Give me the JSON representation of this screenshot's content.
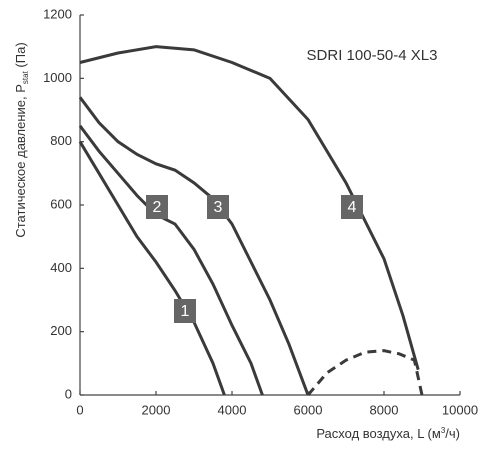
{
  "chart_data": {
    "type": "line",
    "annotation": "SDRI 100-50-4 XL3",
    "y_label": {
      "main": "Статическое давление, P",
      "sub": "stat",
      "tail": " (Па)"
    },
    "x_label": {
      "main": "Расход воздуха, L (м",
      "sup": "3",
      "tail": "/ч)"
    },
    "xlim": [
      0,
      10000
    ],
    "xticks": [
      0,
      2000,
      4000,
      6000,
      8000,
      10000
    ],
    "ylim": [
      0,
      1200
    ],
    "yticks": [
      0,
      200,
      400,
      600,
      800,
      1000,
      1200
    ],
    "grid": false,
    "series": [
      {
        "name": "1",
        "color": "#3a3a3a",
        "x": [
          0,
          500,
          1000,
          1500,
          2000,
          2500,
          3000,
          3500,
          3800
        ],
        "values": [
          800,
          700,
          600,
          500,
          420,
          330,
          230,
          100,
          0
        ]
      },
      {
        "name": "2",
        "color": "#3a3a3a",
        "x": [
          0,
          500,
          1000,
          1500,
          2000,
          2500,
          3000,
          3500,
          4000,
          4500,
          4800
        ],
        "values": [
          850,
          770,
          700,
          630,
          570,
          540,
          460,
          350,
          220,
          100,
          0
        ]
      },
      {
        "name": "3",
        "color": "#3a3a3a",
        "x": [
          0,
          500,
          1000,
          1500,
          2000,
          2500,
          3000,
          3500,
          4000,
          4500,
          5000,
          5500,
          6000
        ],
        "values": [
          940,
          860,
          800,
          760,
          730,
          710,
          670,
          620,
          540,
          420,
          300,
          160,
          0
        ]
      },
      {
        "name": "4",
        "color": "#3a3a3a",
        "x": [
          0,
          1000,
          2000,
          3000,
          4000,
          5000,
          6000,
          7000,
          8000,
          8500,
          8900
        ],
        "values": [
          1050,
          1080,
          1100,
          1090,
          1050,
          1000,
          870,
          670,
          430,
          250,
          80
        ]
      }
    ],
    "dashed_series": {
      "color": "#3a3a3a",
      "x": [
        6000,
        6500,
        7000,
        7500,
        8000,
        8400,
        8800,
        9000
      ],
      "values": [
        0,
        70,
        110,
        135,
        140,
        130,
        110,
        0
      ]
    }
  }
}
